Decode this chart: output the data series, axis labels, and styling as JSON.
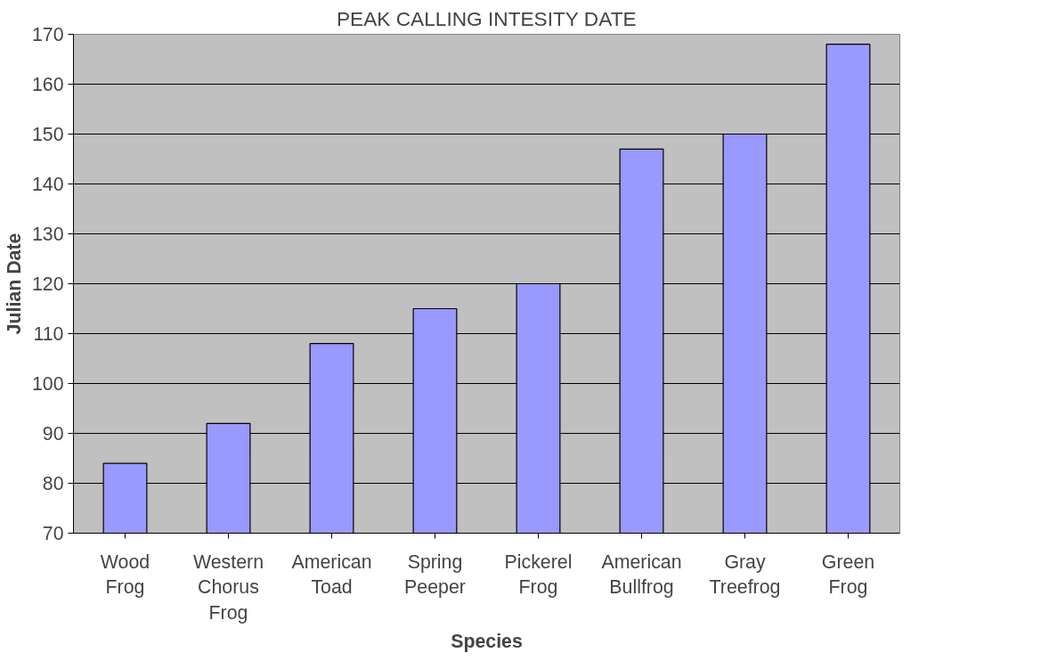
{
  "chart_data": {
    "type": "bar",
    "title": "PEAK CALLING INTESITY DATE",
    "xlabel": "Species",
    "ylabel": "Julian Date",
    "categories": [
      "Wood Frog",
      "Western Chorus Frog",
      "American Toad",
      "Spring Peeper",
      "Pickerel Frog",
      "American Bullfrog",
      "Gray Treefrog",
      "Green Frog"
    ],
    "values": [
      84,
      92,
      108,
      115,
      120,
      147,
      150,
      168
    ],
    "color": "#9999ff",
    "ylim": [
      70,
      170
    ],
    "yticks": [
      70,
      80,
      90,
      100,
      110,
      120,
      130,
      140,
      150,
      160,
      170
    ],
    "grid": "y"
  }
}
